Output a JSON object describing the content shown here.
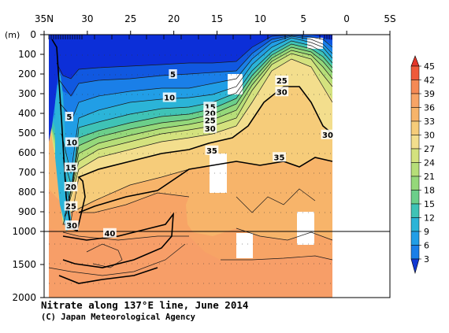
{
  "chart_data": {
    "type": "heatmap",
    "title": "Nitrate along 137°E line, June 2014",
    "copyright": "(C) Japan Meteorological Agency",
    "x_axis": {
      "tick_labels": [
        "35N",
        "30",
        "25",
        "20",
        "15",
        "10",
        "5",
        "0",
        "5S"
      ],
      "tick_values": [
        35,
        30,
        25,
        20,
        15,
        10,
        5,
        0,
        -5
      ],
      "range": [
        35,
        -5
      ]
    },
    "y_axis": {
      "unit_label": "(m)",
      "tick_labels": [
        "0",
        "100",
        "200",
        "300",
        "400",
        "500",
        "600",
        "700",
        "800",
        "900",
        "1000",
        "1500",
        "2000"
      ],
      "tick_values": [
        0,
        100,
        200,
        300,
        400,
        500,
        600,
        700,
        800,
        900,
        1000,
        1500,
        2000
      ],
      "range": [
        0,
        2000
      ],
      "scale_break_at": 1000
    },
    "colorbar": {
      "levels": [
        45,
        42,
        39,
        36,
        33,
        30,
        27,
        24,
        21,
        18,
        15,
        12,
        9,
        6,
        3
      ],
      "extend": "both"
    },
    "contour_labels": [
      {
        "text": "5",
        "lat": 20.1,
        "depth": 200
      },
      {
        "text": "10",
        "lat": 20.5,
        "depth": 318
      },
      {
        "text": "15",
        "lat": 15.8,
        "depth": 365
      },
      {
        "text": "20",
        "lat": 15.8,
        "depth": 398
      },
      {
        "text": "25",
        "lat": 15.8,
        "depth": 434
      },
      {
        "text": "30",
        "lat": 15.8,
        "depth": 475
      },
      {
        "text": "35",
        "lat": 15.6,
        "depth": 587
      },
      {
        "text": "35",
        "lat": 7.8,
        "depth": 621
      },
      {
        "text": "25",
        "lat": 7.5,
        "depth": 232
      },
      {
        "text": "30",
        "lat": 7.5,
        "depth": 289
      },
      {
        "text": "30",
        "lat": 2.2,
        "depth": 507
      },
      {
        "text": "5",
        "lat": 32.1,
        "depth": 416
      },
      {
        "text": "10",
        "lat": 31.8,
        "depth": 546
      },
      {
        "text": "15",
        "lat": 31.9,
        "depth": 674
      },
      {
        "text": "20",
        "lat": 31.9,
        "depth": 772
      },
      {
        "text": "25",
        "lat": 31.9,
        "depth": 870
      },
      {
        "text": "30",
        "lat": 31.8,
        "depth": 968
      },
      {
        "text": "40",
        "lat": 27.4,
        "depth": 1021
      }
    ]
  }
}
